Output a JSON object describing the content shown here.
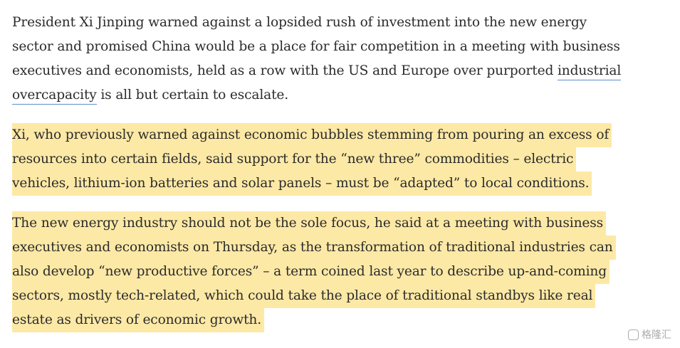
{
  "paragraphs": [
    {
      "highlighted": false,
      "lines": [
        [
          {
            "text": "President Xi Jinping warned against a lopsided rush of investment into the new energy"
          }
        ],
        [
          {
            "text": "sector and promised China would be a place for fair competition in a meeting with business"
          }
        ],
        [
          {
            "text": "executives and economists, held as a row with the US and Europe over purported "
          },
          {
            "text": "industrial",
            "link": true
          }
        ],
        [
          {
            "text": "overcapacity",
            "link": true
          },
          {
            "text": " is all but certain to escalate."
          }
        ]
      ]
    },
    {
      "highlighted": true,
      "lines": [
        [
          {
            "text": "Xi, who previously warned against economic bubbles stemming from pouring an excess of"
          }
        ],
        [
          {
            "text": "resources into certain fields, said support for the “new three” commodities – electric"
          }
        ],
        [
          {
            "text": "vehicles, lithium-ion batteries and solar panels – must be “adapted” to local conditions."
          }
        ]
      ]
    },
    {
      "highlighted": true,
      "lines": [
        [
          {
            "text": "The new energy industry should not be the sole focus, he said at a meeting with business"
          }
        ],
        [
          {
            "text": "executives and economists on Thursday, as the transformation of traditional industries can"
          }
        ],
        [
          {
            "text": "also develop “new productive forces” – a term coined last year to describe up-and-coming"
          }
        ],
        [
          {
            "text": "sectors, mostly tech-related, which could take the place of traditional standbys like real"
          }
        ],
        [
          {
            "text": "estate as drivers of economic growth."
          }
        ]
      ]
    }
  ],
  "watermark": "格隆汇"
}
